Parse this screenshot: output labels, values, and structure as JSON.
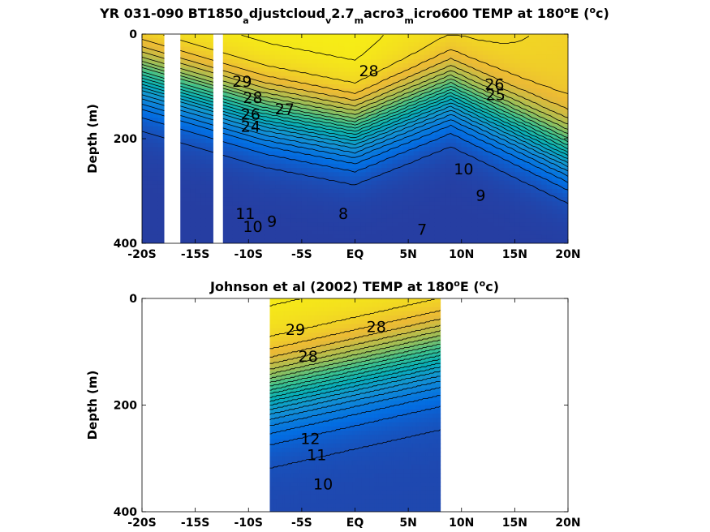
{
  "chart_data": [
    {
      "type": "contour",
      "title_parts": [
        "YR 031-090 BT1850",
        "a",
        "djustcloud",
        "v",
        "2.7",
        "m",
        "acro3",
        "m",
        "icro600 TEMP at 180",
        "o",
        "E (",
        "o",
        "c)"
      ],
      "ylabel": "Depth (m)",
      "xlim": [
        -20,
        20
      ],
      "ylim": [
        400,
        0
      ],
      "x_ticks": [
        -20,
        -15,
        -10,
        -5,
        0,
        5,
        10,
        15,
        20
      ],
      "x_tick_labels": [
        "-20S",
        "-15S",
        "-10S",
        "-5S",
        "EQ",
        "5N",
        "10N",
        "15N",
        "20N"
      ],
      "y_ticks": [
        0,
        200,
        400
      ],
      "y_tick_labels": [
        "0",
        "200",
        "400"
      ],
      "colormap": "parula",
      "color_range_degC": [
        6,
        30
      ],
      "missing_lon_bands": [
        [
          -17.9,
          -16.4
        ],
        [
          -13.3,
          -12.4
        ]
      ],
      "missing_below_depth": [
        [
          -17.9,
          -17.4,
          200
        ]
      ],
      "contour_labels": [
        {
          "text": "29",
          "lon": -10.6,
          "depth": 92
        },
        {
          "text": "28",
          "lon": 1.3,
          "depth": 72
        },
        {
          "text": "28",
          "lon": -9.6,
          "depth": 123
        },
        {
          "text": "27",
          "lon": -6.6,
          "depth": 145
        },
        {
          "text": "26",
          "lon": 13.1,
          "depth": 98
        },
        {
          "text": "26",
          "lon": -9.8,
          "depth": 155
        },
        {
          "text": "25",
          "lon": 13.2,
          "depth": 118
        },
        {
          "text": "24",
          "lon": -9.8,
          "depth": 178
        },
        {
          "text": "10",
          "lon": 10.2,
          "depth": 260
        },
        {
          "text": "9",
          "lon": 11.8,
          "depth": 310
        },
        {
          "text": "11",
          "lon": -10.3,
          "depth": 345
        },
        {
          "text": "10",
          "lon": -9.6,
          "depth": 370
        },
        {
          "text": "9",
          "lon": -7.8,
          "depth": 360
        },
        {
          "text": "8",
          "lon": -1.1,
          "depth": 345
        },
        {
          "text": "7",
          "lon": 6.3,
          "depth": 375
        }
      ]
    },
    {
      "type": "contour",
      "title_parts": [
        "Johnson et al (2002) TEMP at 180",
        "o",
        "E (",
        "o",
        "c)"
      ],
      "ylabel": "Depth (m)",
      "xlim": [
        -20,
        20
      ],
      "ylim": [
        400,
        0
      ],
      "x_ticks": [
        -20,
        -15,
        -10,
        -5,
        0,
        5,
        10,
        15,
        20
      ],
      "x_tick_labels": [
        "-20S",
        "-15S",
        "-10S",
        "-5S",
        "EQ",
        "5N",
        "10N",
        "15N",
        "20N"
      ],
      "y_ticks": [
        0,
        200,
        400
      ],
      "y_tick_labels": [
        "0",
        "200",
        "400"
      ],
      "colormap": "parula",
      "color_range_degC": [
        6,
        30
      ],
      "data_lon_range": [
        -8,
        8
      ],
      "contour_labels": [
        {
          "text": "29",
          "lon": -5.6,
          "depth": 60
        },
        {
          "text": "28",
          "lon": 2.0,
          "depth": 55
        },
        {
          "text": "28",
          "lon": -4.4,
          "depth": 110
        },
        {
          "text": "12",
          "lon": -4.2,
          "depth": 265
        },
        {
          "text": "11",
          "lon": -3.6,
          "depth": 295
        },
        {
          "text": "10",
          "lon": -3.0,
          "depth": 350
        }
      ]
    }
  ]
}
